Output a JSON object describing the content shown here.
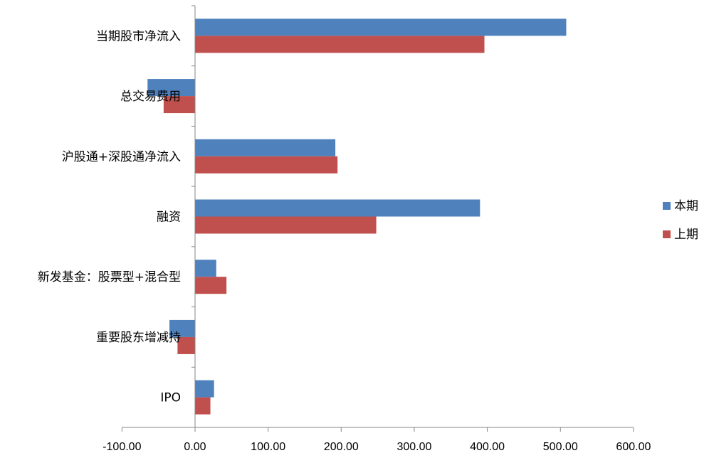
{
  "chart_data": {
    "type": "bar",
    "orientation": "horizontal",
    "categories": [
      "当期股市净流入",
      "总交易费用",
      "沪股通+深股通净流入",
      "融资",
      "新发基金：股票型+混合型",
      "重要股东增减持",
      "IPO"
    ],
    "series": [
      {
        "name": "本期",
        "color": "#4F81BD",
        "values": [
          508,
          -65,
          192,
          390,
          29,
          -35,
          26
        ]
      },
      {
        "name": "上期",
        "color": "#C0504D",
        "values": [
          396,
          -43,
          195,
          248,
          43,
          -24,
          21
        ]
      }
    ],
    "xlim": [
      -100,
      600
    ],
    "xticks": [
      -100,
      0,
      100,
      200,
      300,
      400,
      500,
      600
    ],
    "tick_labels": [
      "-100.00",
      "0.00",
      "100.00",
      "200.00",
      "300.00",
      "400.00",
      "500.00",
      "600.00"
    ],
    "grid": false,
    "legend_position": "right",
    "title": "",
    "xlabel": "",
    "ylabel": ""
  }
}
